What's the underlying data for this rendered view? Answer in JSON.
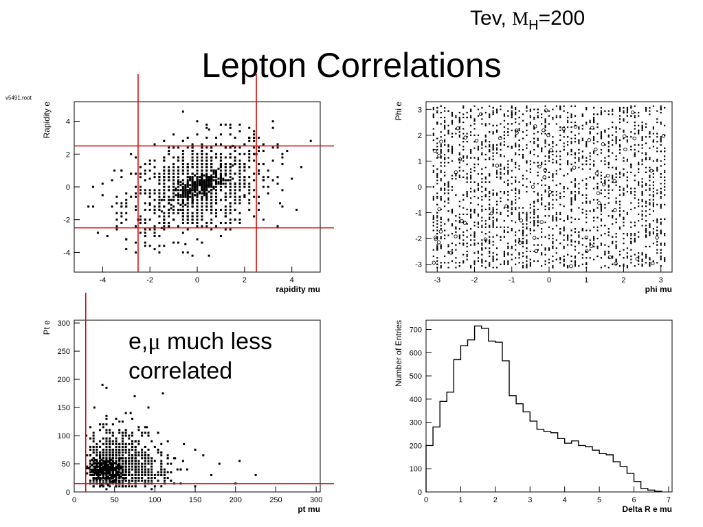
{
  "header_note": {
    "prefix": "Tev, ",
    "mass_symbol": "M",
    "mass_subscript": "H",
    "mass_value": "=200"
  },
  "title": "Lepton Correlations",
  "annotation": {
    "line1_prefix": "e,",
    "mu_symbol": "μ",
    "line1_suffix": " much less",
    "line2": "correlated"
  },
  "file_label": "v5491.root",
  "colors": {
    "cut_lines": "#d40000",
    "markers": "#000000"
  },
  "chart_data": [
    {
      "type": "scatter",
      "id": "rapidity",
      "xlabel": "rapidity mu",
      "ylabel": "Rapidity e",
      "xlim": [
        -5.2,
        5.2
      ],
      "ylim": [
        -5.2,
        5.2
      ],
      "xticks": [
        -4,
        -2,
        0,
        2,
        4
      ],
      "yticks": [
        -4,
        -2,
        0,
        2,
        4
      ],
      "cuts": {
        "x": [
          -2.5,
          2.5
        ],
        "y": [
          -2.5,
          2.5
        ]
      },
      "distribution": "correlated core around (0, 0); sigma about 1.5 in each coordinate",
      "points": [
        [
          -0.5,
          -0.5
        ],
        [
          -0.3,
          -0.3
        ],
        [
          0,
          0
        ],
        [
          0.3,
          0.2
        ],
        [
          0.5,
          0.4
        ],
        [
          -0.8,
          -0.6
        ],
        [
          0.8,
          0.7
        ],
        [
          1.0,
          0.5
        ],
        [
          -1.0,
          -0.8
        ],
        [
          0.2,
          0.4
        ],
        [
          -2.0,
          0.5
        ],
        [
          2.0,
          -0.5
        ],
        [
          1.5,
          2.5
        ],
        [
          -1.5,
          -2.5
        ],
        [
          3.0,
          1.0
        ],
        [
          -3.0,
          -1.0
        ],
        [
          0.5,
          3.5
        ],
        [
          -0.5,
          -3.5
        ],
        [
          2.5,
          2.0
        ],
        [
          -2.5,
          -2.0
        ],
        [
          4.0,
          0.5
        ],
        [
          -4.0,
          -0.5
        ],
        [
          3.5,
          -1.0
        ],
        [
          -3.5,
          1.0
        ],
        [
          0.0,
          4.0
        ],
        [
          0.5,
          -4.2
        ],
        [
          1.8,
          3.8
        ],
        [
          -1.8,
          -3.8
        ],
        [
          2.8,
          -2.0
        ],
        [
          -2.8,
          2.0
        ]
      ]
    },
    {
      "type": "scatter",
      "id": "phi",
      "xlabel": "phi mu",
      "ylabel": "Phi e",
      "xlim": [
        -3.3,
        3.3
      ],
      "ylim": [
        -3.3,
        3.3
      ],
      "xticks": [
        -3,
        -2,
        -1,
        0,
        1,
        2,
        3
      ],
      "yticks": [
        -3,
        -2,
        -1,
        0,
        1,
        2,
        3
      ],
      "distribution": "uniform over [-3.14, 3.14] in both coordinates",
      "points": [
        [
          -3.0,
          -3.0
        ],
        [
          -2.0,
          2.0
        ],
        [
          -1.0,
          -1.0
        ],
        [
          0,
          0
        ],
        [
          1.0,
          1.0
        ],
        [
          2.0,
          -2.0
        ],
        [
          3.0,
          3.0
        ],
        [
          -2.5,
          0.5
        ],
        [
          2.5,
          -0.5
        ],
        [
          0.5,
          2.5
        ]
      ]
    },
    {
      "type": "scatter",
      "id": "pt",
      "xlabel": "pt mu",
      "ylabel": "Pt e",
      "xlim": [
        0,
        305
      ],
      "ylim": [
        0,
        305
      ],
      "xticks": [
        0,
        50,
        100,
        150,
        200,
        250,
        300
      ],
      "yticks": [
        0,
        50,
        100,
        150,
        200,
        250,
        300
      ],
      "cuts": {
        "x": [
          10
        ],
        "y": [
          5
        ]
      },
      "distribution": "dense core near (40, 40); tail to (225, 190)",
      "points": [
        [
          40,
          40
        ],
        [
          35,
          35
        ],
        [
          45,
          50
        ],
        [
          30,
          45
        ],
        [
          50,
          30
        ],
        [
          20,
          20
        ],
        [
          60,
          60
        ],
        [
          80,
          40
        ],
        [
          100,
          30
        ],
        [
          120,
          20
        ],
        [
          150,
          10
        ],
        [
          200,
          15
        ],
        [
          225,
          30
        ],
        [
          135,
          55
        ],
        [
          205,
          55
        ],
        [
          150,
          75
        ],
        [
          170,
          30
        ],
        [
          35,
          190
        ],
        [
          40,
          185
        ],
        [
          75,
          170
        ],
        [
          110,
          175
        ],
        [
          90,
          115
        ],
        [
          70,
          140
        ],
        [
          60,
          100
        ],
        [
          25,
          150
        ],
        [
          15,
          100
        ],
        [
          100,
          80
        ],
        [
          125,
          60
        ],
        [
          160,
          65
        ],
        [
          180,
          50
        ]
      ]
    },
    {
      "type": "step",
      "id": "deltaR",
      "xlabel": "Delta R e mu",
      "ylabel": "Number of Entries",
      "xlim": [
        0,
        7.1
      ],
      "ylim": [
        0,
        740
      ],
      "xticks": [
        0,
        1,
        2,
        3,
        4,
        5,
        6,
        7
      ],
      "yticks": [
        0,
        100,
        200,
        300,
        400,
        500,
        600,
        700
      ],
      "bin_width": 0.2,
      "x": [
        0,
        0.2,
        0.4,
        0.6,
        0.8,
        1.0,
        1.2,
        1.4,
        1.6,
        1.8,
        2.0,
        2.2,
        2.4,
        2.6,
        2.8,
        3.0,
        3.2,
        3.4,
        3.6,
        3.8,
        4.0,
        4.2,
        4.4,
        4.6,
        4.8,
        5.0,
        5.2,
        5.4,
        5.6,
        5.8,
        6.0,
        6.2,
        6.4,
        6.6
      ],
      "values": [
        200,
        280,
        390,
        430,
        570,
        630,
        655,
        715,
        705,
        650,
        645,
        565,
        415,
        380,
        345,
        305,
        270,
        260,
        255,
        230,
        210,
        220,
        200,
        195,
        180,
        165,
        160,
        130,
        110,
        80,
        45,
        15,
        8,
        3
      ]
    }
  ]
}
